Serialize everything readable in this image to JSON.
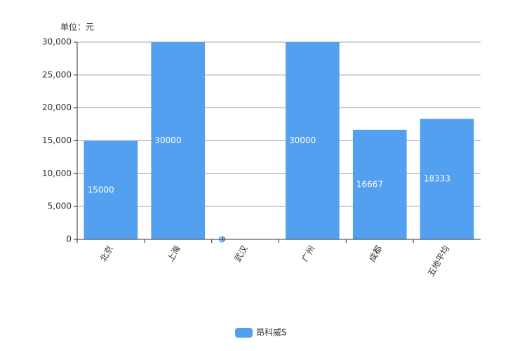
{
  "chart_data": {
    "type": "bar",
    "y_label": "单位：元",
    "categories": [
      "北京",
      "上海",
      "武汉",
      "广州",
      "成都",
      "五地平均"
    ],
    "series": [
      {
        "name": "昂科威S",
        "color": "#539ff0",
        "values": [
          15000,
          30000,
          0,
          30000,
          16667,
          18333
        ]
      }
    ],
    "ylim": [
      0,
      30000
    ],
    "yticks": [
      0,
      {
        "value": 5000,
        "label": "5,000"
      },
      {
        "value": 10000,
        "label": "10,000"
      },
      {
        "value": 15000,
        "label": "15,000"
      },
      {
        "value": 20000,
        "label": "20,000"
      },
      {
        "value": 25000,
        "label": "25,000"
      },
      {
        "value": 30000,
        "label": "30,000"
      }
    ],
    "grid": true,
    "legend": "bottom"
  }
}
